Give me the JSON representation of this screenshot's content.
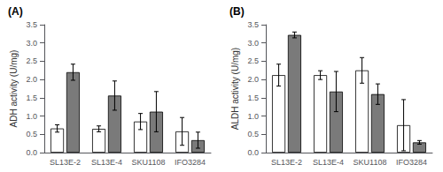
{
  "chart_data": [
    {
      "type": "bar",
      "title": "(A)",
      "ylabel": "ADH activity (U/mg)",
      "categories": [
        "SL13E-2",
        "SL13E-4",
        "SKU1108",
        "IFO3284"
      ],
      "series": [
        {
          "color": "#ffffff",
          "values": [
            0.66,
            0.65,
            0.85,
            0.58
          ],
          "errors": [
            0.1,
            0.08,
            0.22,
            0.38
          ]
        },
        {
          "color": "#7a7a7a",
          "values": [
            2.2,
            1.56,
            1.12,
            0.34
          ],
          "errors": [
            0.22,
            0.4,
            0.55,
            0.22
          ]
        }
      ],
      "ylim": [
        0,
        3.5
      ],
      "yticks": [
        {
          "value": 0,
          "label": "0.0"
        },
        0.5,
        {
          "value": 1,
          "label": "1.0"
        },
        1.5,
        {
          "value": 2,
          "label": "2.0"
        },
        2.5,
        {
          "value": 3,
          "label": "3.0"
        },
        3.5
      ],
      "grid": false
    },
    {
      "type": "bar",
      "title": "(B)",
      "ylabel": "ALDH activity (U/mg)",
      "categories": [
        "SL13E-2",
        "SL13E-4",
        "SKU1108",
        "IFO3284"
      ],
      "series": [
        {
          "color": "#ffffff",
          "values": [
            2.12,
            2.12,
            2.25,
            0.75
          ],
          "errors": [
            0.3,
            0.12,
            0.35,
            0.7
          ]
        },
        {
          "color": "#7a7a7a",
          "values": [
            3.22,
            1.67,
            1.6,
            0.28
          ],
          "errors": [
            0.08,
            0.55,
            0.28,
            0.05
          ]
        }
      ],
      "ylim": [
        0,
        3.5
      ],
      "yticks": [
        {
          "value": 0,
          "label": "0.0"
        },
        0.5,
        {
          "value": 1,
          "label": "1.0"
        },
        1.5,
        {
          "value": 2,
          "label": "2.0"
        },
        2.5,
        {
          "value": 3,
          "label": "3.0"
        },
        3.5
      ],
      "grid": false
    }
  ]
}
